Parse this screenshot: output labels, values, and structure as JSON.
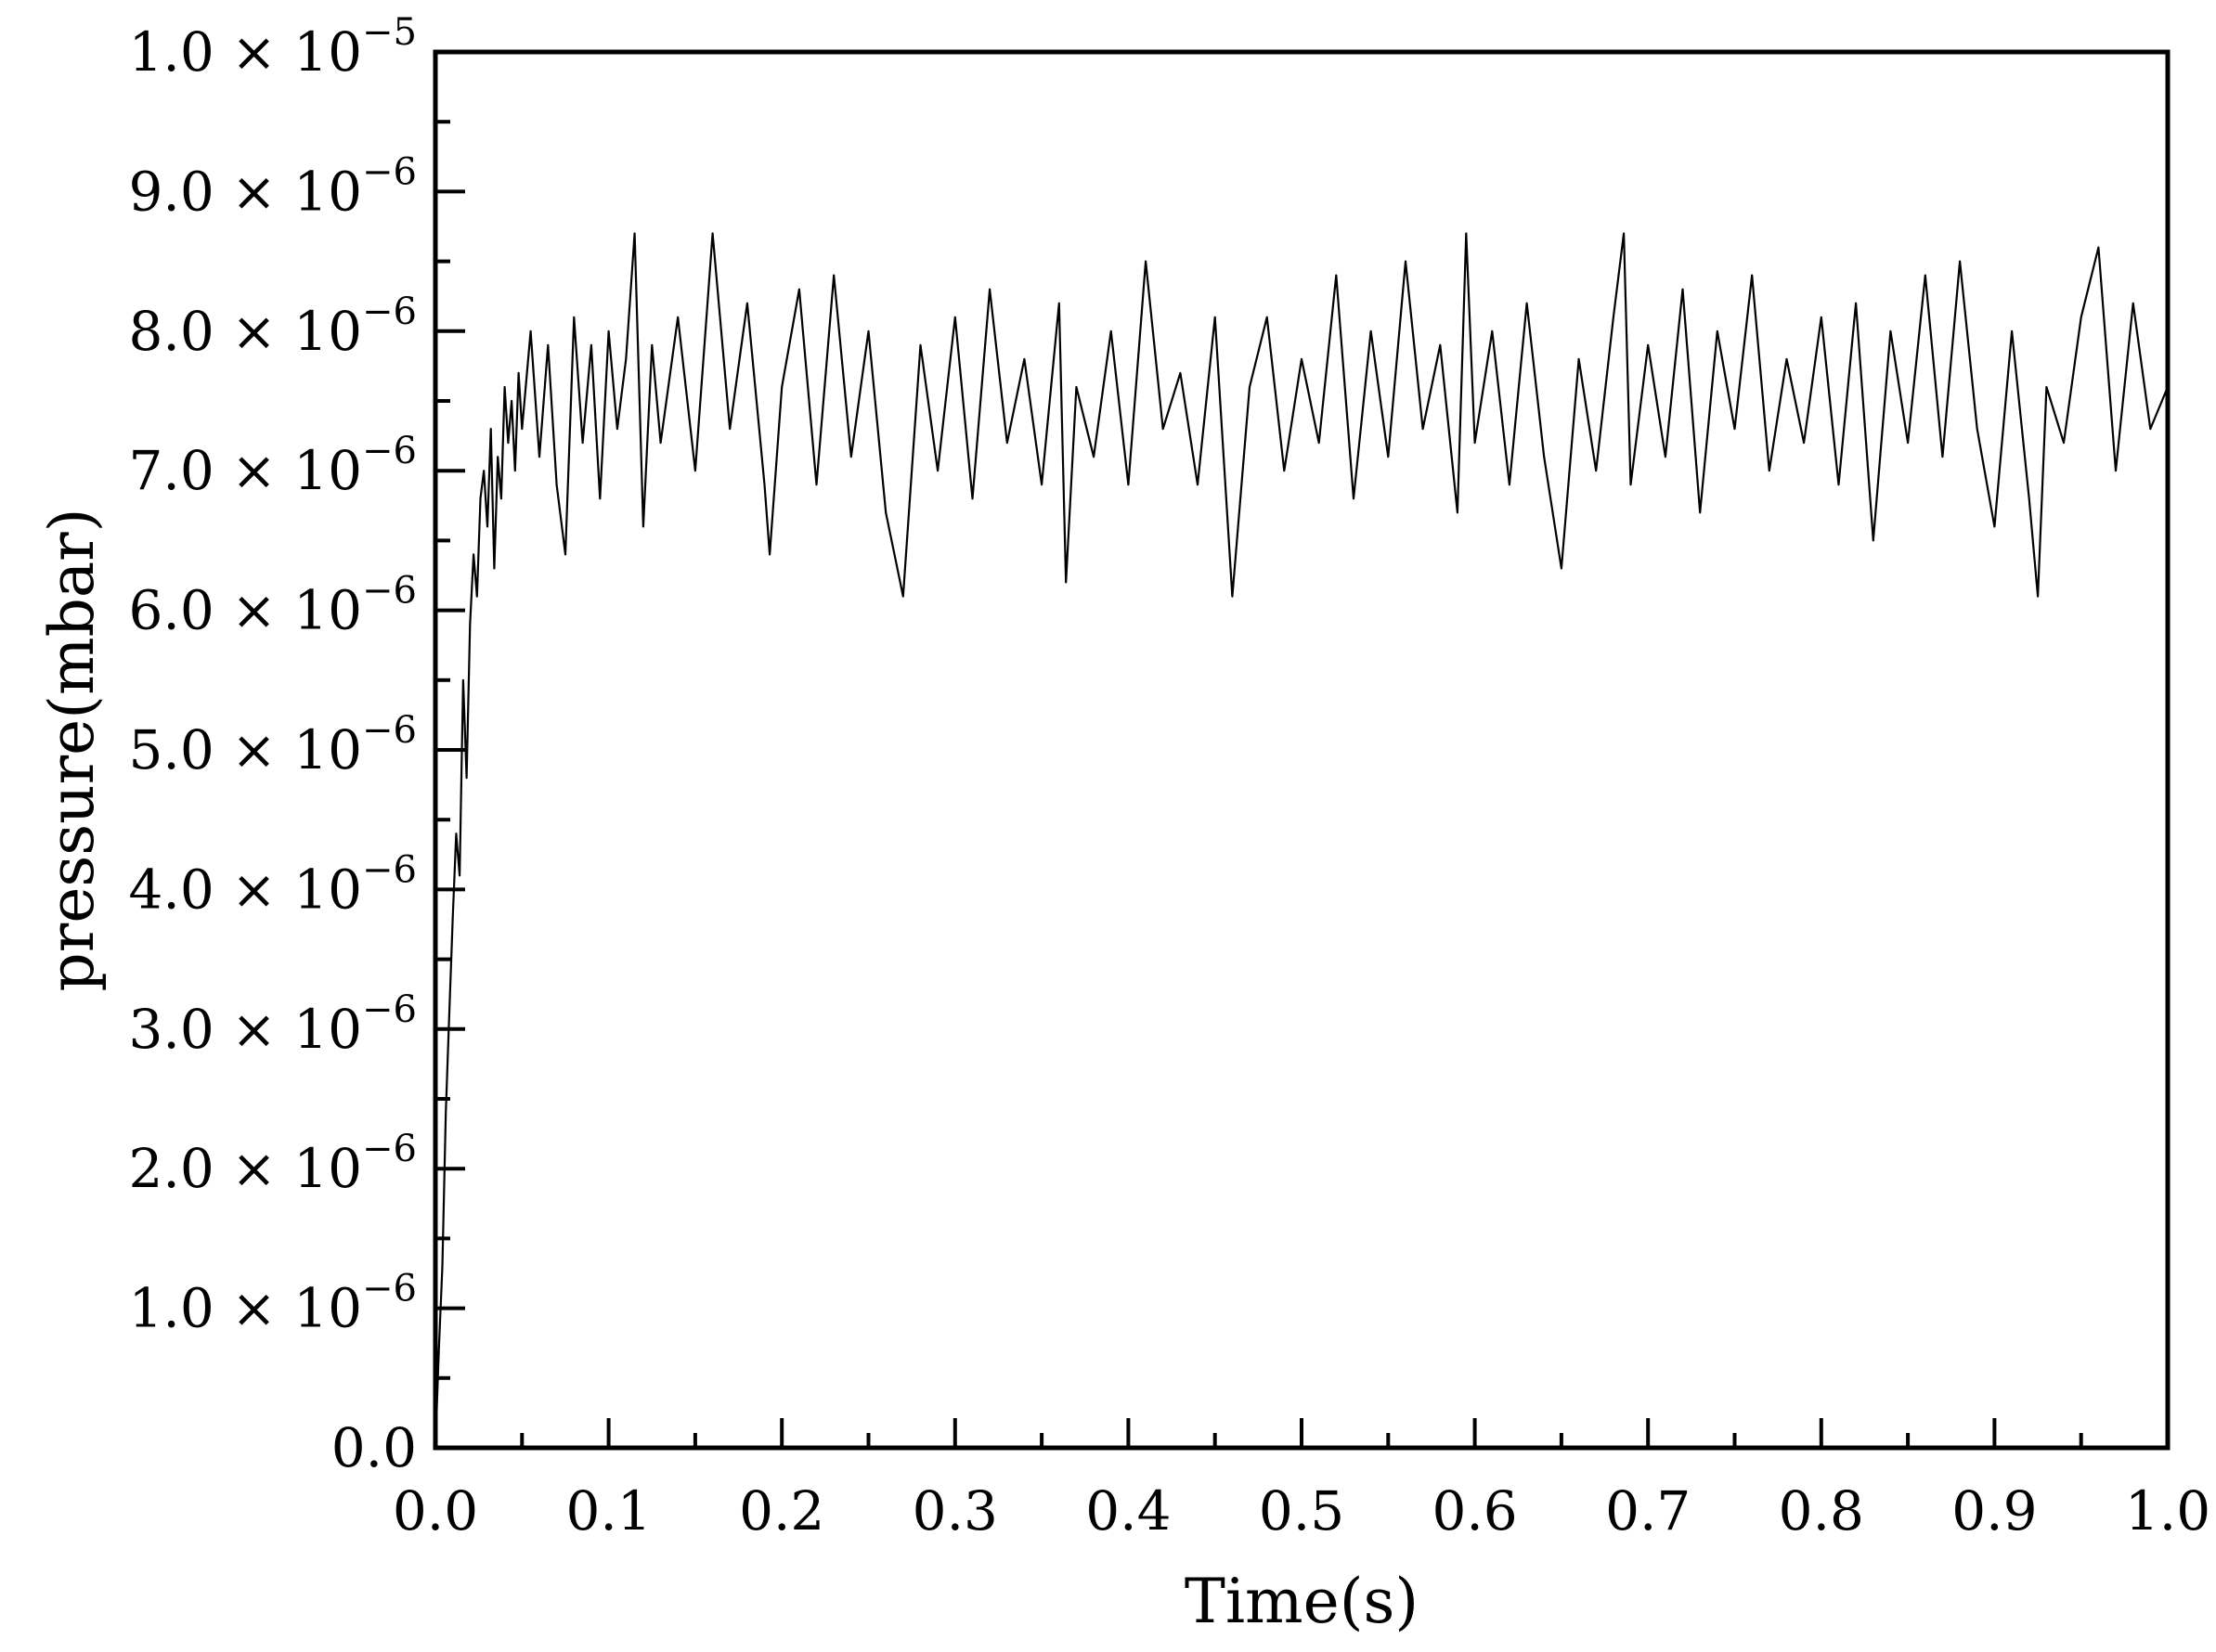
{
  "chart_data": {
    "type": "line",
    "title": "",
    "xlabel": "Time(s)",
    "ylabel": "pressure(mbar)",
    "xlim": [
      0.0,
      1.0
    ],
    "ylim": [
      0.0,
      1e-05
    ],
    "grid": false,
    "legend": "none",
    "line_color": "#000000",
    "x_ticks": [
      {
        "value": 0.0,
        "label": "0.0"
      },
      {
        "value": 0.1,
        "label": "0.1"
      },
      {
        "value": 0.2,
        "label": "0.2"
      },
      {
        "value": 0.3,
        "label": "0.3"
      },
      {
        "value": 0.4,
        "label": "0.4"
      },
      {
        "value": 0.5,
        "label": "0.5"
      },
      {
        "value": 0.6,
        "label": "0.6"
      },
      {
        "value": 0.7,
        "label": "0.7"
      },
      {
        "value": 0.8,
        "label": "0.8"
      },
      {
        "value": 0.9,
        "label": "0.9"
      },
      {
        "value": 1.0,
        "label": "1.0"
      }
    ],
    "y_ticks": [
      {
        "value": 0.0,
        "mantissa": "0.0",
        "times": "",
        "base": "",
        "exponent": ""
      },
      {
        "value": 1e-06,
        "mantissa": "1.0",
        "times": "×",
        "base": "10",
        "exponent": "−6"
      },
      {
        "value": 2e-06,
        "mantissa": "2.0",
        "times": "×",
        "base": "10",
        "exponent": "−6"
      },
      {
        "value": 3e-06,
        "mantissa": "3.0",
        "times": "×",
        "base": "10",
        "exponent": "−6"
      },
      {
        "value": 4e-06,
        "mantissa": "4.0",
        "times": "×",
        "base": "10",
        "exponent": "−6"
      },
      {
        "value": 5e-06,
        "mantissa": "5.0",
        "times": "×",
        "base": "10",
        "exponent": "−6"
      },
      {
        "value": 6e-06,
        "mantissa": "6.0",
        "times": "×",
        "base": "10",
        "exponent": "−6"
      },
      {
        "value": 7e-06,
        "mantissa": "7.0",
        "times": "×",
        "base": "10",
        "exponent": "−6"
      },
      {
        "value": 8e-06,
        "mantissa": "8.0",
        "times": "×",
        "base": "10",
        "exponent": "−6"
      },
      {
        "value": 9e-06,
        "mantissa": "9.0",
        "times": "×",
        "base": "10",
        "exponent": "−6"
      },
      {
        "value": 1e-05,
        "mantissa": "1.0",
        "times": "×",
        "base": "10",
        "exponent": "−5"
      }
    ],
    "series": [
      {
        "x": [
          0.0,
          0.002,
          0.004,
          0.006,
          0.008,
          0.01,
          0.012,
          0.014,
          0.016,
          0.018,
          0.02,
          0.022,
          0.024,
          0.026,
          0.028,
          0.03,
          0.032,
          0.034,
          0.036,
          0.038,
          0.04,
          0.042,
          0.044,
          0.046,
          0.048,
          0.05,
          0.055,
          0.06,
          0.065,
          0.07,
          0.075,
          0.08,
          0.085,
          0.09,
          0.095,
          0.1,
          0.105,
          0.11,
          0.115,
          0.12,
          0.125,
          0.13,
          0.14,
          0.15,
          0.16,
          0.17,
          0.18,
          0.19,
          0.193,
          0.2,
          0.21,
          0.22,
          0.23,
          0.24,
          0.25,
          0.26,
          0.27,
          0.28,
          0.29,
          0.3,
          0.31,
          0.32,
          0.33,
          0.34,
          0.35,
          0.36,
          0.364,
          0.37,
          0.38,
          0.39,
          0.4,
          0.41,
          0.42,
          0.43,
          0.44,
          0.45,
          0.46,
          0.47,
          0.48,
          0.49,
          0.5,
          0.51,
          0.52,
          0.53,
          0.54,
          0.55,
          0.56,
          0.57,
          0.58,
          0.59,
          0.595,
          0.6,
          0.61,
          0.62,
          0.63,
          0.64,
          0.65,
          0.66,
          0.67,
          0.68,
          0.686,
          0.69,
          0.7,
          0.71,
          0.72,
          0.73,
          0.74,
          0.75,
          0.76,
          0.77,
          0.78,
          0.79,
          0.8,
          0.81,
          0.82,
          0.83,
          0.84,
          0.85,
          0.86,
          0.87,
          0.88,
          0.89,
          0.9,
          0.91,
          0.92,
          0.925,
          0.93,
          0.94,
          0.95,
          0.96,
          0.97,
          0.98,
          0.99,
          1.0
        ],
        "y": [
          0.0,
          7e-07,
          1.3e-06,
          2.4e-06,
          3.1e-06,
          3.8e-06,
          4.4e-06,
          4.1e-06,
          5.5e-06,
          4.8e-06,
          5.9e-06,
          6.4e-06,
          6.1e-06,
          6.8e-06,
          7e-06,
          6.6e-06,
          7.3e-06,
          6.3e-06,
          7.1e-06,
          6.8e-06,
          7.6e-06,
          7.2e-06,
          7.5e-06,
          7e-06,
          7.7e-06,
          7.3e-06,
          8e-06,
          7.1e-06,
          7.9e-06,
          6.9e-06,
          6.4e-06,
          8.1e-06,
          7.2e-06,
          7.9e-06,
          6.8e-06,
          8e-06,
          7.3e-06,
          7.8e-06,
          8.7e-06,
          6.6e-06,
          7.9e-06,
          7.2e-06,
          8.1e-06,
          7e-06,
          8.7e-06,
          7.3e-06,
          8.2e-06,
          6.9e-06,
          6.4e-06,
          7.6e-06,
          8.3e-06,
          6.9e-06,
          8.4e-06,
          7.1e-06,
          8e-06,
          6.7e-06,
          6.1e-06,
          7.9e-06,
          7e-06,
          8.1e-06,
          6.8e-06,
          8.3e-06,
          7.2e-06,
          7.8e-06,
          6.9e-06,
          8.2e-06,
          6.2e-06,
          7.6e-06,
          7.1e-06,
          8e-06,
          6.9e-06,
          8.5e-06,
          7.3e-06,
          7.7e-06,
          6.9e-06,
          8.1e-06,
          6.1e-06,
          7.6e-06,
          8.1e-06,
          7e-06,
          7.8e-06,
          7.2e-06,
          8.4e-06,
          6.8e-06,
          8e-06,
          7.1e-06,
          8.5e-06,
          7.3e-06,
          7.9e-06,
          6.7e-06,
          8.7e-06,
          7.2e-06,
          8e-06,
          6.9e-06,
          8.2e-06,
          7.1e-06,
          6.3e-06,
          7.8e-06,
          7e-06,
          8.1e-06,
          8.7e-06,
          6.9e-06,
          7.9e-06,
          7.1e-06,
          8.3e-06,
          6.7e-06,
          8e-06,
          7.3e-06,
          8.4e-06,
          7e-06,
          7.8e-06,
          7.2e-06,
          8.1e-06,
          6.9e-06,
          8.2e-06,
          6.5e-06,
          8e-06,
          7.2e-06,
          8.4e-06,
          7.1e-06,
          8.5e-06,
          7.3e-06,
          6.6e-06,
          8e-06,
          6.8e-06,
          6.1e-06,
          7.6e-06,
          7.2e-06,
          8.1e-06,
          8.6e-06,
          7e-06,
          8.2e-06,
          7.3e-06,
          7.6e-06
        ]
      }
    ]
  }
}
